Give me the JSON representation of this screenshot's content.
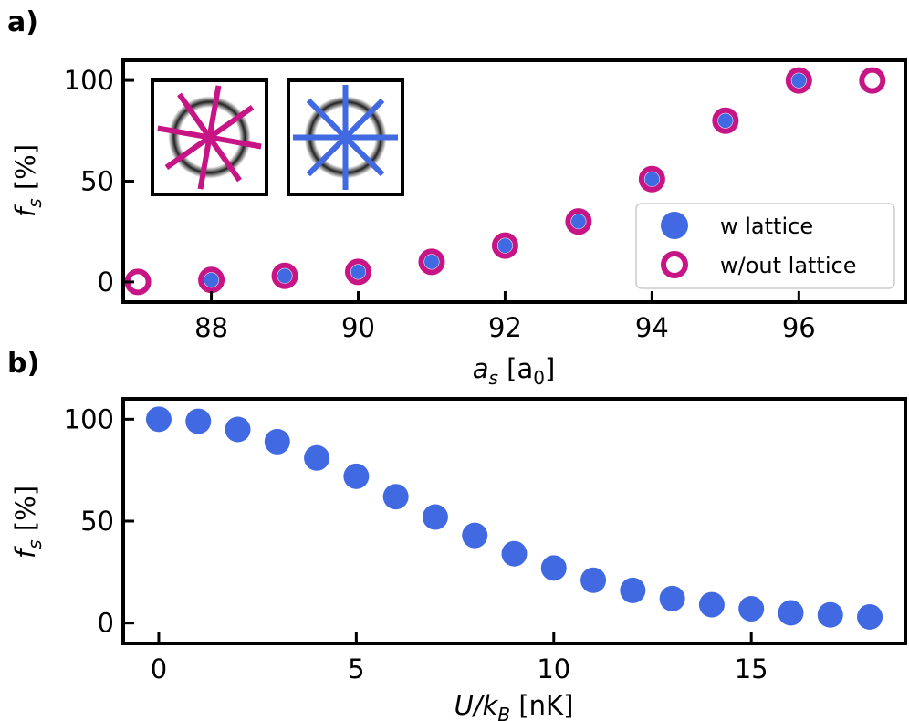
{
  "colors": {
    "lattice": "#4169E1",
    "no_lattice": "#C71585",
    "axis": "#000000"
  },
  "chart_data": [
    {
      "type": "scatter",
      "panel_label": "a)",
      "xlabel_main": "a",
      "xlabel_sub": "s",
      "xlabel_open": " [a",
      "xlabel_sub2": "0",
      "xlabel_close": "]",
      "ylabel_main": "f",
      "ylabel_sub": "s",
      "ylabel_unit": " [%]",
      "xlim": [
        86.8,
        97.45
      ],
      "ylim": [
        -10,
        110
      ],
      "xticks": [
        88,
        90,
        92,
        94,
        96
      ],
      "yticks": [
        0,
        50,
        100
      ],
      "legend_position": "lower-right",
      "series": [
        {
          "name": "w lattice",
          "marker": "filled-circle",
          "x": [
            88,
            89,
            90,
            91,
            92,
            93,
            94,
            95,
            96
          ],
          "y": [
            1,
            3,
            5,
            10,
            18,
            30,
            51,
            80,
            100
          ]
        },
        {
          "name": "w/out lattice",
          "marker": "open-circle",
          "x": [
            87,
            88,
            89,
            90,
            91,
            92,
            93,
            94,
            95,
            96,
            97
          ],
          "y": [
            0,
            1,
            3,
            5,
            10,
            18,
            30,
            51,
            80,
            100,
            100
          ]
        }
      ],
      "insets": [
        {
          "name": "lattice-pattern-magenta",
          "color_key": "no_lattice"
        },
        {
          "name": "lattice-pattern-blue",
          "color_key": "lattice"
        }
      ]
    },
    {
      "type": "scatter",
      "panel_label": "b)",
      "xlabel_main": "U/k",
      "xlabel_sub": "B",
      "xlabel_unit": " [nK]",
      "ylabel_main": "f",
      "ylabel_sub": "s",
      "ylabel_unit": " [%]",
      "xlim": [
        -0.9,
        18.9
      ],
      "ylim": [
        -10,
        110
      ],
      "xticks": [
        0,
        5,
        10,
        15
      ],
      "yticks": [
        0,
        50,
        100
      ],
      "series": [
        {
          "marker": "filled-circle",
          "x": [
            0,
            1,
            2,
            3,
            4,
            5,
            6,
            7,
            8,
            9,
            10,
            11,
            12,
            13,
            14,
            15,
            16,
            17,
            18
          ],
          "y": [
            100,
            99,
            95,
            89,
            81,
            72,
            62,
            52,
            43,
            34,
            27,
            21,
            16,
            12,
            9,
            7,
            5,
            4,
            3
          ]
        }
      ]
    }
  ]
}
